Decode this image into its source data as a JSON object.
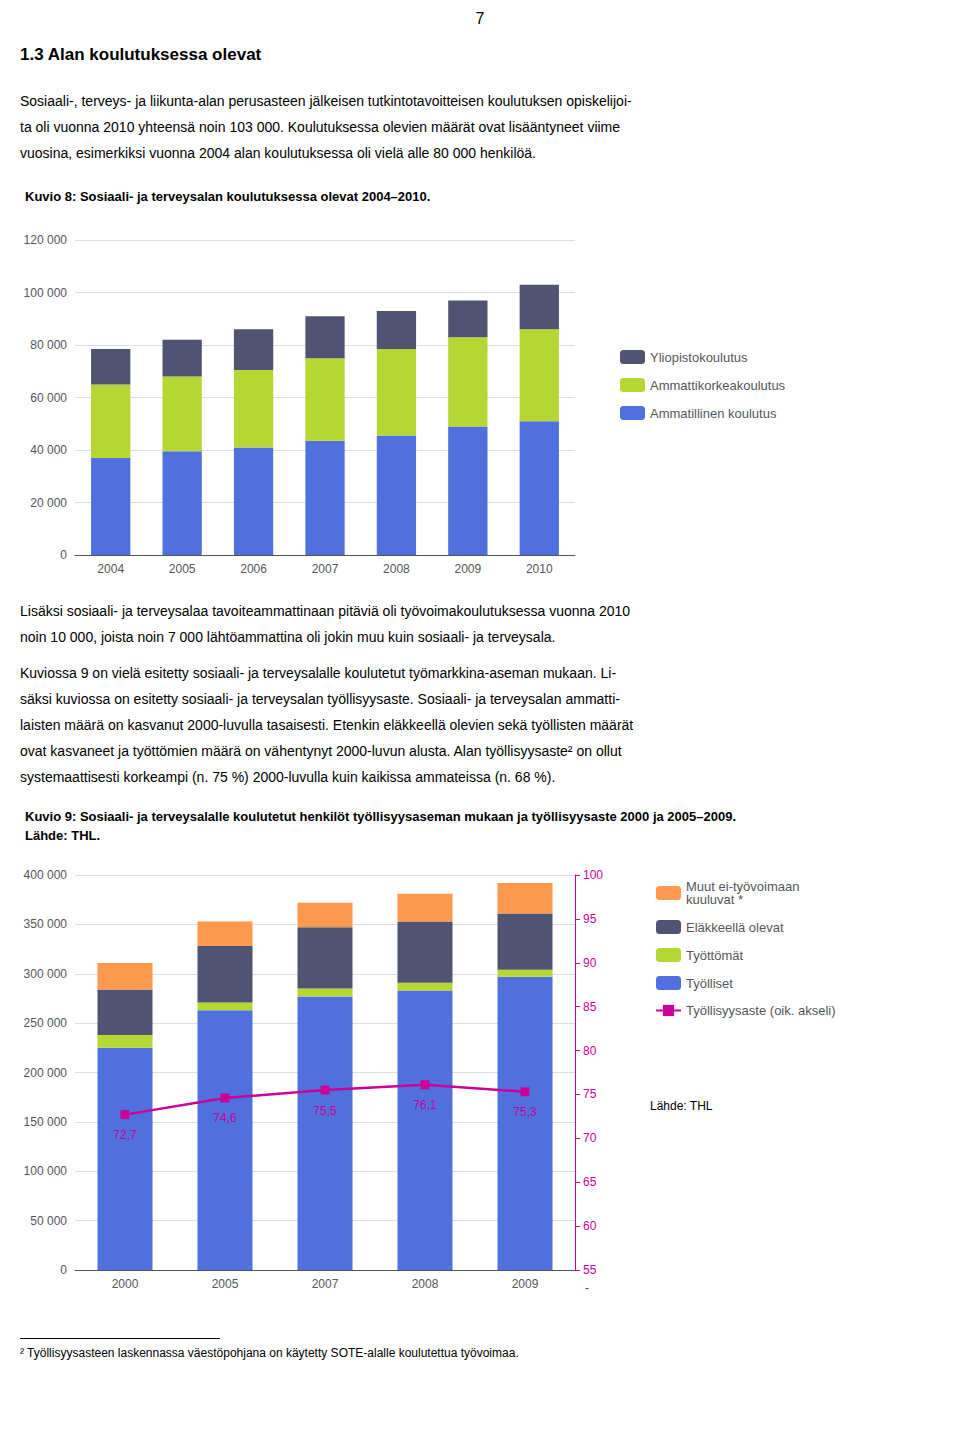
{
  "page_number": "7",
  "section_title": "1.3  Alan koulutuksessa olevat",
  "text1_lines": [
    "Sosiaali-, terveys- ja liikunta-alan perusasteen jälkeisen tutkintotavoitteisen koulutuksen opiskelijoi-",
    "ta oli vuonna 2010 yhteensä noin 103 000. Koulutuksessa olevien määrät ovat lisääntyneet viime",
    "vuosina, esimerkiksi vuonna 2004 alan koulutuksessa oli vielä alle 80 000 henkilöä."
  ],
  "text2_lines": [
    "Lisäksi sosiaali- ja terveysalaa tavoiteammattinaan pitäviä oli työvoimakoulutuksessa vuonna 2010",
    "noin 10 000, joista noin 7 000 lähtöammattina oli jokin muu kuin sosiaali- ja terveysala."
  ],
  "text3_lines": [
    "Kuviossa 9 on vielä esitetty sosiaali- ja terveysalalle koulutetut työmarkkina-aseman mukaan. Li-",
    "säksi kuviossa on esitetty sosiaali- ja terveysalan työllisyysaste. Sosiaali- ja terveysalan ammatti-",
    "laisten määrä on kasvanut 2000-luvulla tasaisesti. Etenkin eläkkeellä olevien sekä työllisten määrät",
    "ovat kasvaneet ja työttömien määrä on vähentynyt 2000-luvun alusta. Alan työllisyysaste² on ollut",
    "systemaattisesti korkeampi (n. 75 %) 2000-luvulla kuin kaikissa ammateissa (n. 68 %)."
  ],
  "footnote": "² Työllisyysasteen laskennassa väestöpohjana on käytetty SOTE-alalle koulutettua työvoimaa.",
  "chart_data": [
    {
      "type": "bar",
      "title": "Kuvio 8: Sosiaali- ja terveysalan koulutuksessa olevat 2004–2010.",
      "categories": [
        "2004",
        "2005",
        "2006",
        "2007",
        "2008",
        "2009",
        "2010"
      ],
      "series": [
        {
          "name": "Ammatillinen koulutus",
          "values": [
            37000,
            39500,
            41000,
            43500,
            45500,
            49000,
            51000
          ]
        },
        {
          "name": "Ammattikorkeakoulutus",
          "values": [
            28000,
            28500,
            29500,
            31500,
            33000,
            34000,
            35000
          ]
        },
        {
          "name": "Yliopistokoulutus",
          "values": [
            13500,
            14000,
            15500,
            16000,
            14500,
            14000,
            17000
          ]
        }
      ],
      "ylim": [
        0,
        120000
      ],
      "yticks": [
        0,
        {
          "value": 20000,
          "label": "20 000"
        },
        {
          "value": 40000,
          "label": "40 000"
        },
        {
          "value": 60000,
          "label": "60 000"
        },
        {
          "value": 80000,
          "label": "80 000"
        },
        {
          "value": 100000,
          "label": "100 000"
        },
        {
          "value": 120000,
          "label": "120 000"
        }
      ],
      "grid": true,
      "legend": "right",
      "stacked": true
    },
    {
      "type": "bar",
      "title": "Kuvio 9: Sosiaali- ja terveysalalle koulutetut henkilöt työllisyysaseman mukaan ja työllisyysaste 2000 ja 2005–2009.",
      "subtitle": "Lähde: THL.",
      "categories": [
        "2000",
        "2005",
        "2007",
        "2008",
        "2009"
      ],
      "series": [
        {
          "name": "Työlliset",
          "values": [
            225000,
            263000,
            277000,
            283000,
            297000
          ]
        },
        {
          "name": "Työttömät",
          "values": [
            13000,
            8000,
            8000,
            8000,
            7000
          ]
        },
        {
          "name": "Eläkkeellä olevat",
          "values": [
            46000,
            57000,
            62000,
            62000,
            57000
          ]
        },
        {
          "name": "Muut ei-työvoimaan\nkuuluvat *",
          "values": [
            27000,
            25000,
            25000,
            28000,
            31000
          ]
        },
        {
          "name": "Työllisyysaste (oik. akseli)",
          "type": "line",
          "axis": "y2",
          "color": "#cc0099",
          "marker": "square",
          "data_labels": true,
          "values": [
            72.7,
            74.6,
            75.5,
            76.1,
            75.3
          ],
          "value_labels": [
            "72,7",
            "74,6",
            "75,5",
            "76,1",
            "75,3"
          ]
        }
      ],
      "ylim": [
        0,
        400000
      ],
      "yticks": [
        0,
        {
          "value": 50000,
          "label": "50 000"
        },
        {
          "value": 100000,
          "label": "100 000"
        },
        {
          "value": 150000,
          "label": "150 000"
        },
        {
          "value": 200000,
          "label": "200 000"
        },
        {
          "value": 250000,
          "label": "250 000"
        },
        {
          "value": 300000,
          "label": "300 000"
        },
        {
          "value": 350000,
          "label": "350 000"
        },
        {
          "value": 400000,
          "label": "400 000"
        }
      ],
      "y2lim": [
        55,
        100
      ],
      "y2ticks": [
        55,
        60,
        65,
        70,
        75,
        80,
        85,
        90,
        95,
        100
      ],
      "grid": true,
      "legend": "right",
      "stacked": true,
      "annotations": [
        "Lähde: THL",
        "-"
      ]
    }
  ]
}
